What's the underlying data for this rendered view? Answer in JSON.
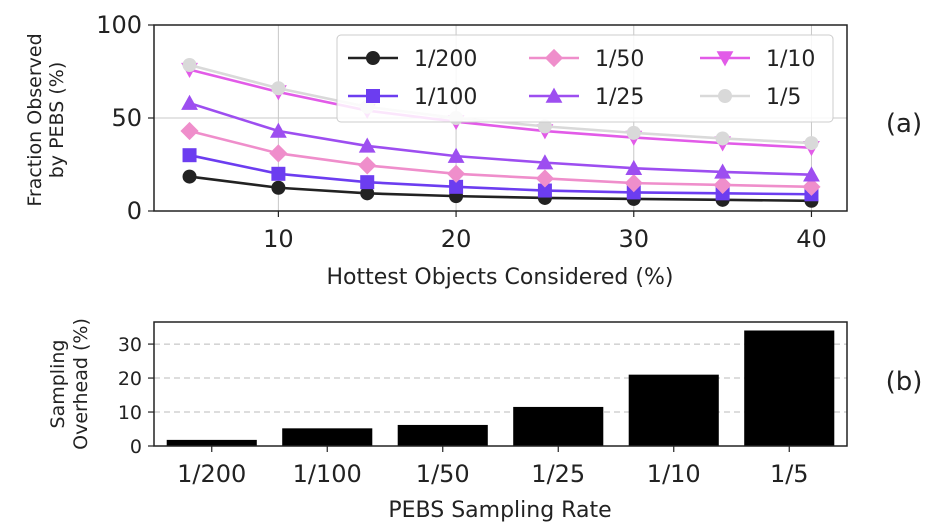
{
  "chart_data": [
    {
      "type": "line",
      "panel_label": "(a)",
      "xlabel": "Hottest Objects Considered (%)",
      "ylabel": [
        "Fraction Observed",
        "by PEBS (%)"
      ],
      "xlim": [
        3,
        42
      ],
      "ylim": [
        0,
        100
      ],
      "xticks": [
        10,
        20,
        30,
        40
      ],
      "yticks": [
        0,
        50,
        100
      ],
      "grid": true,
      "legend": {
        "placement": "top-right",
        "columns": 3
      },
      "x": [
        5,
        10,
        15,
        20,
        25,
        30,
        35,
        40
      ],
      "series": [
        {
          "name": "1/200",
          "color": "#222222",
          "marker": "circle",
          "values": [
            18.5,
            12.5,
            9.5,
            8,
            7,
            6.5,
            6,
            5.5
          ]
        },
        {
          "name": "1/100",
          "color": "#6c3df0",
          "marker": "square",
          "values": [
            30,
            20,
            15.5,
            13,
            11,
            10,
            9.5,
            9
          ]
        },
        {
          "name": "1/50",
          "color": "#ef8ecb",
          "marker": "diamond",
          "values": [
            43,
            31,
            24.5,
            20,
            17.5,
            15,
            14,
            13
          ]
        },
        {
          "name": "1/25",
          "color": "#9d4ef0",
          "marker": "triangle-up",
          "values": [
            58,
            43,
            35,
            29.5,
            26,
            23,
            21,
            19.5
          ]
        },
        {
          "name": "1/10",
          "color": "#e25be8",
          "marker": "triangle-down",
          "values": [
            76,
            64,
            54,
            48,
            43,
            39.5,
            36.5,
            34
          ]
        },
        {
          "name": "1/5",
          "color": "#d9d9d9",
          "marker": "circle",
          "values": [
            78.5,
            66,
            56,
            50,
            45.5,
            42,
            39,
            36.5
          ]
        }
      ]
    },
    {
      "type": "bar",
      "panel_label": "(b)",
      "xlabel": "PEBS Sampling Rate",
      "ylabel": [
        "Sampling",
        "Overhead (%)"
      ],
      "ylim": [
        0,
        36.5
      ],
      "yticks": [
        0,
        10,
        20,
        30
      ],
      "grid": "y-dashed",
      "bar_color": "#000000",
      "categories": [
        "1/200",
        "1/100",
        "1/50",
        "1/25",
        "1/10",
        "1/5"
      ],
      "values": [
        1.8,
        5.2,
        6.2,
        11.5,
        21,
        34
      ]
    }
  ]
}
